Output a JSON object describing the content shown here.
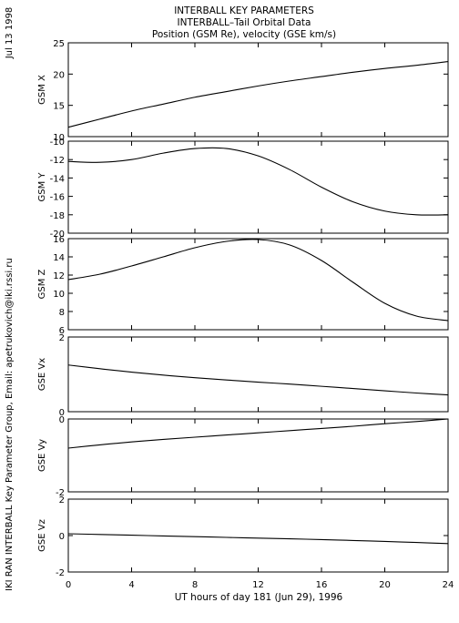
{
  "header": {
    "title_lines": [
      "INTERBALL KEY PARAMETERS",
      "INTERBALL–Tail Orbital Data",
      "Position (GSM Re), velocity (GSE km/s)"
    ],
    "date": "Jul 13 1998",
    "credit": "IKI RAN INTERBALL Key Parameter Group, Email: apetrukovich@iki.rssi.ru"
  },
  "chart_data": {
    "type": "line",
    "xlabel": "UT hours of day 181 (Jun 29), 1996",
    "xlim": [
      0,
      24
    ],
    "xticks": [
      0,
      4,
      8,
      12,
      16,
      20,
      24
    ],
    "x": [
      0,
      2,
      4,
      6,
      8,
      10,
      12,
      14,
      16,
      18,
      20,
      22,
      24
    ],
    "panels": [
      {
        "ylabel": "GSM X",
        "ylim": [
          10,
          25
        ],
        "yticks": [
          10,
          15,
          20,
          25
        ],
        "values": [
          11.5,
          12.8,
          14.1,
          15.2,
          16.3,
          17.2,
          18.1,
          18.9,
          19.6,
          20.3,
          20.9,
          21.4,
          22.0
        ]
      },
      {
        "ylabel": "GSM Y",
        "ylim": [
          -20,
          -10
        ],
        "yticks": [
          -20,
          -18,
          -16,
          -14,
          -12,
          -10
        ],
        "values": [
          -12.2,
          -12.3,
          -12.0,
          -11.3,
          -10.8,
          -10.8,
          -11.6,
          -13.1,
          -15.0,
          -16.6,
          -17.6,
          -18.0,
          -18.0
        ]
      },
      {
        "ylabel": "GSM Z",
        "ylim": [
          6,
          16
        ],
        "yticks": [
          6,
          8,
          10,
          12,
          14,
          16
        ],
        "values": [
          11.5,
          12.1,
          13.0,
          14.0,
          15.0,
          15.7,
          15.9,
          15.3,
          13.6,
          11.2,
          8.9,
          7.5,
          7.0
        ]
      },
      {
        "ylabel": "GSE Vx",
        "ylim": [
          0,
          2
        ],
        "yticks": [
          0,
          2
        ],
        "values": [
          1.25,
          1.15,
          1.06,
          0.98,
          0.91,
          0.85,
          0.79,
          0.74,
          0.68,
          0.62,
          0.56,
          0.5,
          0.45
        ]
      },
      {
        "ylabel": "GSE Vy",
        "ylim": [
          -2,
          0
        ],
        "yticks": [
          -2,
          0
        ],
        "values": [
          -0.8,
          -0.71,
          -0.63,
          -0.56,
          -0.5,
          -0.44,
          -0.38,
          -0.32,
          -0.26,
          -0.2,
          -0.13,
          -0.07,
          0.0
        ]
      },
      {
        "ylabel": "GSE Vz",
        "ylim": [
          -2,
          2
        ],
        "yticks": [
          -2,
          0,
          2
        ],
        "values": [
          0.1,
          0.06,
          0.02,
          -0.02,
          -0.06,
          -0.1,
          -0.14,
          -0.18,
          -0.22,
          -0.27,
          -0.32,
          -0.38,
          -0.44
        ]
      }
    ]
  }
}
